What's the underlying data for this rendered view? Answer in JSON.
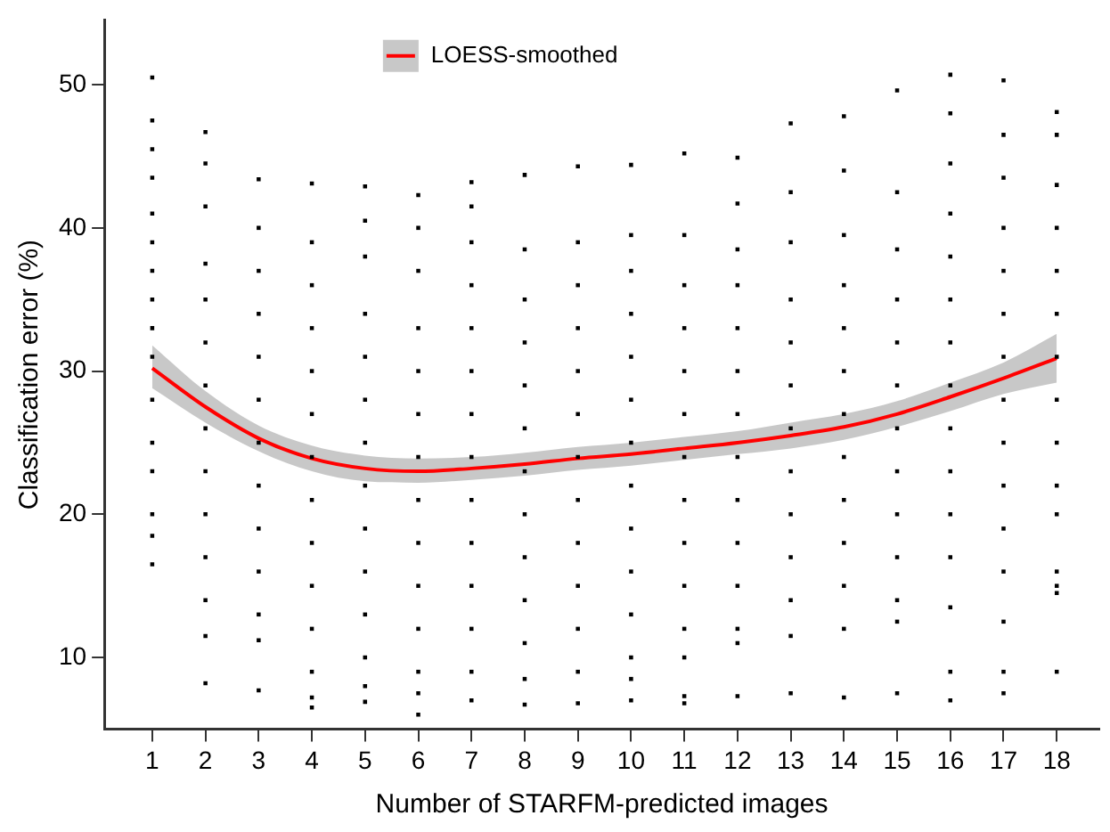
{
  "chart_data": {
    "type": "scatter",
    "xlabel": "Number of STARFM-predicted images",
    "ylabel": "Classification error (%)",
    "xlim": [
      0.1,
      18.8
    ],
    "ylim": [
      5,
      54.5
    ],
    "xticks": [
      1,
      2,
      3,
      4,
      5,
      6,
      7,
      8,
      9,
      10,
      11,
      12,
      13,
      14,
      15,
      16,
      17,
      18
    ],
    "yticks": [
      10,
      20,
      30,
      40,
      50
    ],
    "grid": false,
    "legend": "top",
    "marker": "square",
    "series": [
      {
        "color": "#000000",
        "x": [
          1,
          1,
          1,
          1,
          1,
          1,
          1,
          1,
          1,
          1,
          1,
          1,
          1,
          1,
          1,
          1,
          2,
          2,
          2,
          2,
          2,
          2,
          2,
          2,
          2,
          2,
          2,
          2,
          2,
          2,
          3,
          3,
          3,
          3,
          3,
          3,
          3,
          3,
          3,
          3,
          3,
          3,
          3,
          4,
          4,
          4,
          4,
          4,
          4,
          4,
          4,
          4,
          4,
          4,
          4,
          4,
          4,
          5,
          5,
          5,
          5,
          5,
          5,
          5,
          5,
          5,
          5,
          5,
          5,
          5,
          5,
          6,
          6,
          6,
          6,
          6,
          6,
          6,
          6,
          6,
          6,
          6,
          6,
          6,
          6,
          7,
          7,
          7,
          7,
          7,
          7,
          7,
          7,
          7,
          7,
          7,
          7,
          7,
          7,
          8,
          8,
          8,
          8,
          8,
          8,
          8,
          8,
          8,
          8,
          8,
          8,
          8,
          9,
          9,
          9,
          9,
          9,
          9,
          9,
          9,
          9,
          9,
          9,
          9,
          9,
          10,
          10,
          10,
          10,
          10,
          10,
          10,
          10,
          10,
          10,
          10,
          10,
          10,
          10,
          11,
          11,
          11,
          11,
          11,
          11,
          11,
          11,
          11,
          11,
          11,
          11,
          11,
          11,
          12,
          12,
          12,
          12,
          12,
          12,
          12,
          12,
          12,
          12,
          12,
          12,
          12,
          12,
          13,
          13,
          13,
          13,
          13,
          13,
          13,
          13,
          13,
          13,
          13,
          13,
          13,
          14,
          14,
          14,
          14,
          14,
          14,
          14,
          14,
          14,
          14,
          14,
          14,
          14,
          15,
          15,
          15,
          15,
          15,
          15,
          15,
          15,
          15,
          15,
          15,
          15,
          15,
          16,
          16,
          16,
          16,
          16,
          16,
          16,
          16,
          16,
          16,
          16,
          16,
          16,
          16,
          16,
          17,
          17,
          17,
          17,
          17,
          17,
          17,
          17,
          17,
          17,
          17,
          17,
          17,
          17,
          17,
          18,
          18,
          18,
          18,
          18,
          18,
          18,
          18,
          18,
          18,
          18,
          18,
          18,
          18,
          18
        ],
        "values": [
          50.5,
          47.5,
          45.5,
          43.5,
          41,
          39,
          37,
          35,
          33,
          31,
          28,
          25,
          23,
          20,
          18.5,
          16.5,
          46.7,
          44.5,
          41.5,
          37.5,
          35,
          32,
          29,
          26,
          23,
          20,
          17,
          14,
          11.5,
          8.2,
          43.4,
          40,
          37,
          34,
          31,
          28,
          25,
          22,
          19,
          16,
          13,
          11.2,
          7.7,
          43.1,
          39,
          36,
          33,
          30,
          27,
          24,
          21,
          18,
          15,
          12,
          9,
          7.2,
          6.5,
          42.9,
          40.5,
          38,
          34,
          31,
          28,
          25,
          22,
          19,
          16,
          13,
          10,
          8,
          6.9,
          42.3,
          40,
          37,
          33,
          30,
          27,
          24,
          21,
          18,
          15,
          12,
          9,
          7.5,
          6,
          43.2,
          41.5,
          39,
          36,
          33,
          30,
          27,
          24,
          21,
          18,
          15,
          12,
          9,
          7,
          43.7,
          38.5,
          35,
          32,
          29,
          26,
          23,
          20,
          17,
          14,
          11,
          8.5,
          6.7,
          44.3,
          39,
          36,
          33,
          30,
          27,
          24,
          21,
          18,
          15,
          12,
          9,
          6.8,
          44.4,
          39.5,
          37,
          34,
          31,
          28,
          25,
          22,
          19,
          16,
          13,
          10,
          8.5,
          7,
          45.2,
          39.5,
          36,
          33,
          30,
          27,
          24,
          21,
          18,
          15,
          12,
          10,
          7.3,
          6.8,
          44.9,
          41.7,
          38.5,
          36,
          33,
          30,
          27,
          24,
          21,
          18,
          15,
          12,
          11,
          7.3,
          47.3,
          42.5,
          39,
          35,
          32,
          29,
          26,
          23,
          20,
          17,
          14,
          11.5,
          7.5,
          47.8,
          44,
          39.5,
          36,
          33,
          30,
          27,
          24,
          21,
          18,
          15,
          12,
          7.2,
          49.6,
          42.5,
          38.5,
          35,
          32,
          29,
          26,
          23,
          20,
          17,
          14,
          12.5,
          7.5,
          50.7,
          48,
          44.5,
          41,
          38,
          35,
          32,
          29,
          26,
          23,
          20,
          17,
          13.5,
          9,
          7,
          50.3,
          46.5,
          43.5,
          40,
          37,
          34,
          31,
          28,
          25,
          22,
          19,
          16,
          12.5,
          9,
          7.5,
          48.1,
          46.5,
          43,
          40,
          37,
          34,
          31,
          28,
          25,
          22,
          20,
          16,
          15,
          14.5,
          9
        ]
      },
      {
        "type": "line",
        "name": "LOESS-smoothed",
        "color": "#ff0000",
        "marker": "none",
        "line_style": "solid",
        "x": [
          1,
          2,
          3,
          4,
          5,
          6,
          7,
          8,
          9,
          10,
          11,
          12,
          13,
          14,
          15,
          16,
          17,
          18
        ],
        "values": [
          30.2,
          27.5,
          25.3,
          23.9,
          23.2,
          23.0,
          23.2,
          23.5,
          23.9,
          24.2,
          24.6,
          25.0,
          25.5,
          26.1,
          27.0,
          28.2,
          29.5,
          30.9
        ],
        "lower": [
          28.8,
          26.4,
          24.4,
          23.0,
          22.3,
          22.2,
          22.4,
          22.7,
          23.1,
          23.4,
          23.8,
          24.2,
          24.6,
          25.2,
          26.1,
          27.2,
          28.4,
          29.2
        ],
        "upper": [
          31.8,
          28.6,
          26.2,
          24.8,
          24.1,
          23.9,
          24.0,
          24.3,
          24.7,
          25.0,
          25.4,
          25.8,
          26.4,
          27.0,
          27.9,
          29.2,
          30.6,
          32.6
        ]
      }
    ]
  }
}
